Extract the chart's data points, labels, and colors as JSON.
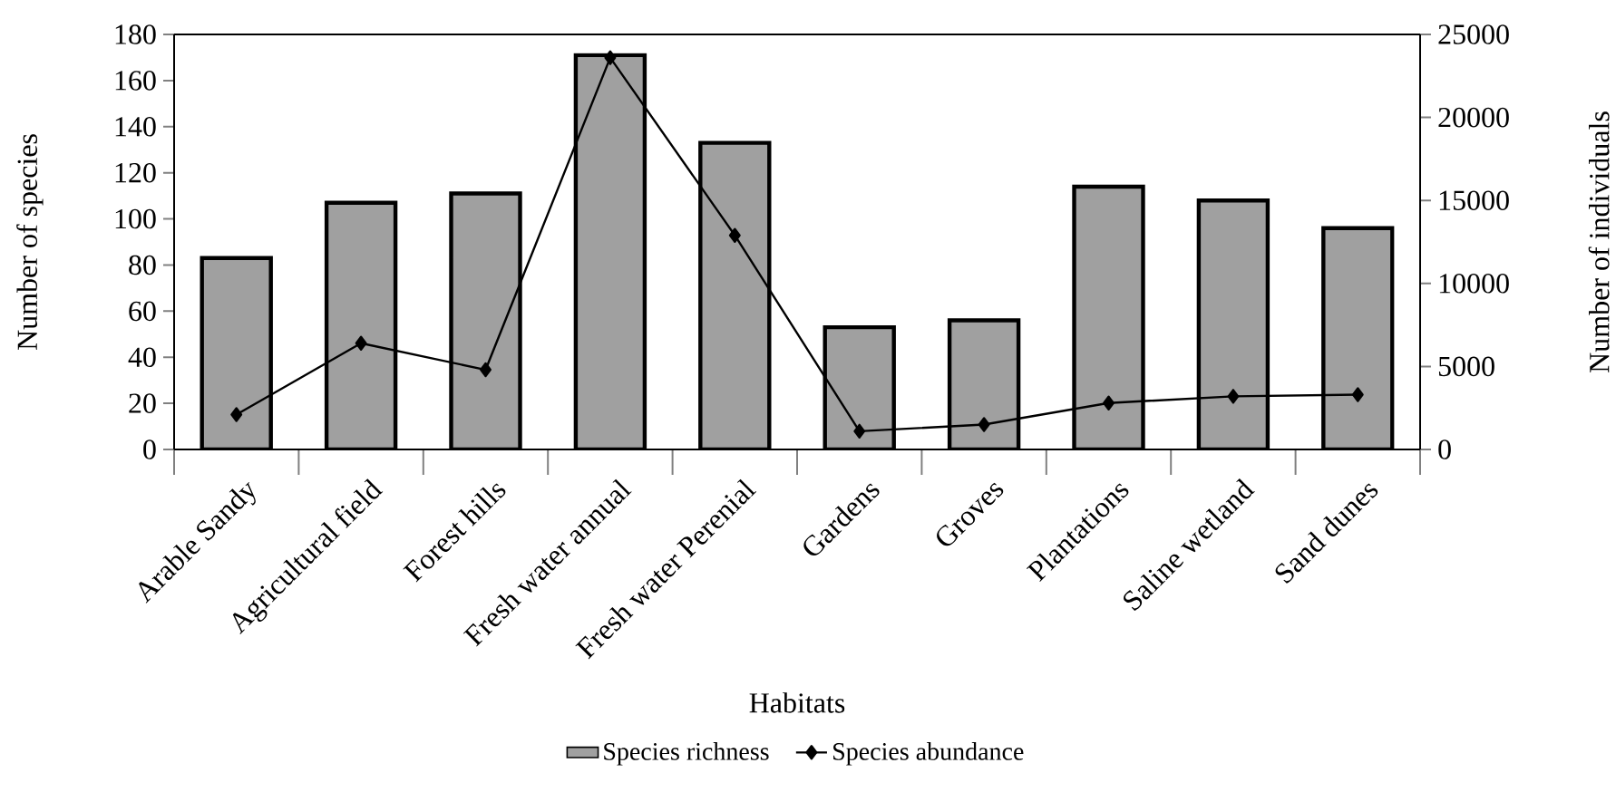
{
  "chart_data": {
    "type": "bar",
    "xlabel": "Habitats",
    "ylabel": "Number of species",
    "y2label": "Number of individuals",
    "categories": [
      "Arable Sandy",
      "Agricultural field",
      "Forest hills",
      "Fresh water annual",
      "Fresh water Perenial",
      "Gardens",
      "Groves",
      "Plantations",
      "Saline wetland",
      "Sand dunes"
    ],
    "series": [
      {
        "name": "Species richness",
        "color": "#a0a0a0",
        "values": [
          83,
          107,
          111,
          171,
          133,
          53,
          56,
          114,
          108,
          96
        ]
      },
      {
        "name": "Species abundance",
        "type": "line",
        "axis": "y2",
        "color": "#000000",
        "values": [
          2100,
          6400,
          4800,
          23600,
          12900,
          1100,
          1500,
          2800,
          3200,
          3300
        ]
      }
    ],
    "ylim": [
      0,
      180
    ],
    "yticks": [
      0,
      20,
      40,
      60,
      80,
      100,
      120,
      140,
      160,
      180
    ],
    "y2lim": [
      0,
      25000
    ],
    "y2ticks": [
      0,
      5000,
      10000,
      15000,
      20000,
      25000
    ],
    "legend": "bottom",
    "marker": "diamond",
    "line_style": "solid",
    "grid": false
  }
}
